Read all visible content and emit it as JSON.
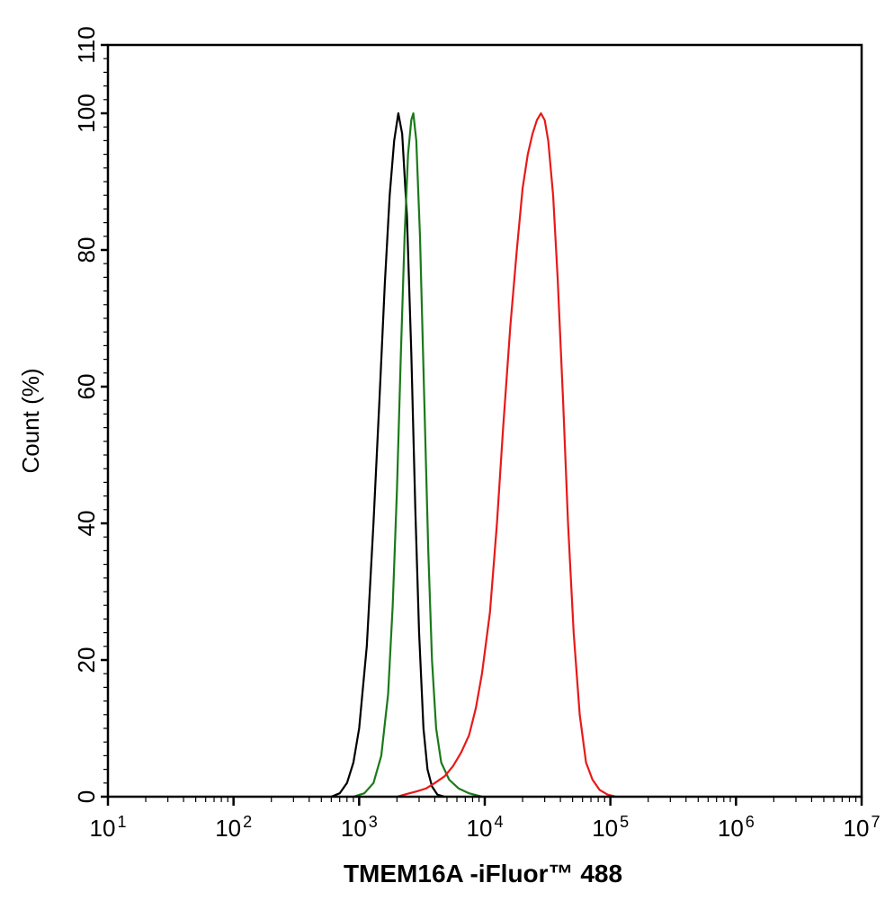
{
  "chart_data": {
    "type": "line",
    "title": "",
    "xlabel": "TMEM16A -iFluor™ 488",
    "ylabel": "Count  (%)",
    "x_scale": "log",
    "xlim": [
      10,
      10000000
    ],
    "ylim": [
      0,
      110
    ],
    "x_ticks": [
      {
        "value": 10,
        "base": "10",
        "exp": "1"
      },
      {
        "value": 100,
        "base": "10",
        "exp": "2"
      },
      {
        "value": 1000,
        "base": "10",
        "exp": "3"
      },
      {
        "value": 10000,
        "base": "10",
        "exp": "4"
      },
      {
        "value": 100000,
        "base": "10",
        "exp": "5"
      },
      {
        "value": 1000000,
        "base": "10",
        "exp": "6"
      },
      {
        "value": 10000000,
        "base": "10",
        "exp": "7"
      }
    ],
    "y_ticks": [
      {
        "value": 0,
        "label": "0"
      },
      {
        "value": 20,
        "label": "20"
      },
      {
        "value": 40,
        "label": "40"
      },
      {
        "value": 60,
        "label": "60"
      },
      {
        "value": 80,
        "label": "80"
      },
      {
        "value": 100,
        "label": "100"
      },
      {
        "value": 110,
        "label": "110"
      }
    ],
    "grid": false,
    "series": [
      {
        "color": "#000000",
        "points": [
          [
            600,
            0
          ],
          [
            700,
            0.5
          ],
          [
            800,
            2
          ],
          [
            900,
            5
          ],
          [
            1000,
            10
          ],
          [
            1150,
            22
          ],
          [
            1300,
            40
          ],
          [
            1450,
            58
          ],
          [
            1600,
            75
          ],
          [
            1750,
            88
          ],
          [
            1900,
            96
          ],
          [
            2050,
            100
          ],
          [
            2200,
            97
          ],
          [
            2400,
            85
          ],
          [
            2600,
            65
          ],
          [
            2800,
            42
          ],
          [
            3000,
            24
          ],
          [
            3250,
            10
          ],
          [
            3500,
            4
          ],
          [
            3800,
            1.5
          ],
          [
            4200,
            0.3
          ],
          [
            4800,
            0
          ]
        ]
      },
      {
        "color": "#1a7a1a",
        "points": [
          [
            900,
            0
          ],
          [
            1100,
            0.5
          ],
          [
            1300,
            2
          ],
          [
            1500,
            6
          ],
          [
            1700,
            15
          ],
          [
            1850,
            28
          ],
          [
            2000,
            45
          ],
          [
            2150,
            65
          ],
          [
            2300,
            82
          ],
          [
            2450,
            94
          ],
          [
            2600,
            99
          ],
          [
            2700,
            100
          ],
          [
            2850,
            96
          ],
          [
            3050,
            82
          ],
          [
            3300,
            58
          ],
          [
            3550,
            36
          ],
          [
            3800,
            20
          ],
          [
            4100,
            10
          ],
          [
            4500,
            5
          ],
          [
            5200,
            2.5
          ],
          [
            6200,
            1.2
          ],
          [
            7500,
            0.5
          ],
          [
            9500,
            0
          ]
        ]
      },
      {
        "color": "#e81919",
        "points": [
          [
            2000,
            0
          ],
          [
            2400,
            0.4
          ],
          [
            2900,
            0.8
          ],
          [
            3400,
            1.2
          ],
          [
            4000,
            2
          ],
          [
            4800,
            3
          ],
          [
            5600,
            4.5
          ],
          [
            6500,
            6.5
          ],
          [
            7500,
            9
          ],
          [
            8500,
            13
          ],
          [
            9500,
            18
          ],
          [
            11000,
            27
          ],
          [
            12500,
            40
          ],
          [
            14000,
            54
          ],
          [
            16000,
            69
          ],
          [
            18000,
            80
          ],
          [
            20000,
            89
          ],
          [
            22000,
            94
          ],
          [
            24000,
            97
          ],
          [
            26000,
            99
          ],
          [
            28000,
            100
          ],
          [
            30000,
            99
          ],
          [
            32000,
            96
          ],
          [
            35000,
            88
          ],
          [
            38000,
            76
          ],
          [
            42000,
            58
          ],
          [
            46000,
            40
          ],
          [
            51000,
            24
          ],
          [
            57000,
            12
          ],
          [
            64000,
            5
          ],
          [
            72000,
            2.5
          ],
          [
            82000,
            1
          ],
          [
            95000,
            0.3
          ],
          [
            110000,
            0
          ]
        ]
      }
    ]
  }
}
